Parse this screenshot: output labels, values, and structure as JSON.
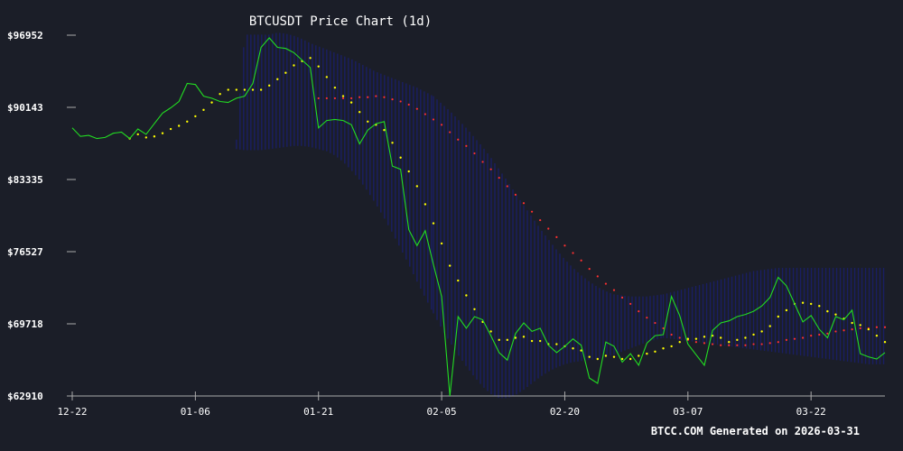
{
  "colors": {
    "background": "#1b1e28",
    "price_line": "#22dd22",
    "ma_yellow": "#ffff00",
    "ma_red": "#ff3030",
    "band_fill": "#1a1f6e",
    "axis_text": "#ffffff",
    "tick": "#aaaaaa"
  },
  "chart_data": {
    "type": "line",
    "title": "BTCUSDT Price Chart (1d)",
    "xlabel": "",
    "ylabel": "",
    "x_axis": {
      "ticks": [
        "12-22",
        "01-06",
        "01-21",
        "02-05",
        "02-20",
        "03-07",
        "03-22"
      ],
      "tick_days": [
        0,
        15,
        30,
        45,
        60,
        75,
        90
      ],
      "range_days": [
        0,
        99
      ]
    },
    "y_axis": {
      "ticks": [
        "$62910",
        "$69718",
        "$76527",
        "$83335",
        "$90143",
        "$96952"
      ],
      "tick_values": [
        62910,
        69718,
        76527,
        83335,
        90143,
        96952
      ],
      "ylim": [
        62910,
        96952
      ]
    },
    "band_segments": [
      {
        "from_day": 20,
        "to_day": 44,
        "upper": [
          87100,
          97000,
          97000,
          97000,
          97000,
          97200,
          97100,
          96900,
          96600,
          96200,
          95900,
          95600,
          95300,
          95000,
          94700,
          94300,
          93900,
          93500,
          93200,
          92900,
          92600,
          92300,
          92000,
          91600,
          91200
        ],
        "lower": [
          86200,
          86100,
          86100,
          86100,
          86200,
          86300,
          86400,
          86500,
          86500,
          86400,
          86200,
          86000,
          85600,
          85000,
          84200,
          83300,
          82200,
          81000,
          79700,
          78300,
          76800,
          75300,
          73700,
          72200,
          70700
        ]
      },
      {
        "from_day": 44,
        "to_day": 72,
        "upper": [
          91200,
          90500,
          89800,
          89000,
          88200,
          87300,
          86400,
          85400,
          84300,
          83200,
          82000,
          80900,
          79800,
          78700,
          77700,
          76700,
          75800,
          75000,
          74300,
          73700,
          73200,
          72800,
          72500,
          72400,
          72300,
          72300,
          72300,
          72400,
          72500
        ],
        "lower": [
          70700,
          69300,
          68000,
          66800,
          65700,
          64700,
          63800,
          63100,
          62700,
          62700,
          63000,
          63500,
          64100,
          64700,
          65200,
          65600,
          65900,
          66100,
          66200,
          66300,
          66400,
          66600,
          66800,
          67100,
          67400,
          67700,
          68000,
          68200,
          68400
        ]
      },
      {
        "from_day": 72,
        "to_day": 99,
        "upper": [
          72500,
          72700,
          72900,
          73100,
          73300,
          73500,
          73700,
          73900,
          74100,
          74300,
          74500,
          74700,
          74800,
          74900,
          75000,
          75000,
          75000,
          75000,
          75000,
          75000,
          75000,
          75000,
          75000,
          75000,
          75000,
          75000,
          75000,
          75000
        ],
        "lower": [
          68400,
          68300,
          68200,
          68100,
          68000,
          67900,
          67800,
          67700,
          67600,
          67500,
          67400,
          67300,
          67200,
          67100,
          67000,
          66900,
          66800,
          66700,
          66600,
          66500,
          66400,
          66300,
          66200,
          66100,
          66000,
          65900,
          65900,
          65900
        ]
      }
    ],
    "series": [
      {
        "values": [
          88200,
          87400,
          87500,
          87200,
          87300,
          87700,
          87800,
          87200,
          88100,
          87600,
          88600,
          89600,
          90100,
          90700,
          92400,
          92300,
          91200,
          91000,
          90700,
          90600,
          91000,
          91200,
          92400,
          95800,
          96700,
          95800,
          95700,
          95300,
          94600,
          93900,
          88200,
          88900,
          89000,
          88900,
          88500,
          86700,
          88000,
          88600,
          88800,
          84600,
          84300,
          78600,
          77100,
          78500,
          75300,
          72300,
          62910,
          70400,
          69300,
          70400,
          70100,
          68600,
          67000,
          66300,
          68800,
          69800,
          69000,
          69300,
          67700,
          67000,
          67600,
          68300,
          67700,
          64600,
          64100,
          68000,
          67600,
          66100,
          66900,
          65800,
          67900,
          68600,
          68700,
          72300,
          70500,
          67800,
          66800,
          65800,
          69100,
          69800,
          70000,
          70400,
          70600,
          70900,
          71400,
          72200,
          74100,
          73300,
          71600,
          69900,
          70500,
          69200,
          68400,
          70400,
          70100,
          71000,
          66900,
          66600,
          66400,
          67000
        ]
      },
      {
        "values": [
          null,
          null,
          null,
          null,
          null,
          null,
          null,
          87200,
          87600,
          87300,
          87400,
          87700,
          88100,
          88400,
          88800,
          89300,
          89900,
          90600,
          91400,
          91800,
          91800,
          91800,
          91800,
          91800,
          92200,
          92800,
          93400,
          94100,
          94500,
          94800,
          94000,
          93000,
          92000,
          91200,
          90600,
          89700,
          88800,
          88500,
          88000,
          86800,
          85400,
          84100,
          82700,
          81000,
          79200,
          77300,
          75200,
          73800,
          72400,
          71100,
          69900,
          69000,
          68200,
          68200,
          68400,
          68500,
          68100,
          68100,
          67800,
          67800,
          67600,
          67400,
          67200,
          66600,
          66400,
          66700,
          66600,
          66400,
          66400,
          66700,
          66900,
          67100,
          67400,
          67600,
          68000,
          68300,
          68300,
          68500,
          68600,
          68400,
          68000,
          68200,
          68400,
          68700,
          69000,
          69500,
          70400,
          71000,
          71600,
          71700,
          71600,
          71400,
          70900,
          70600,
          70200,
          69800,
          69600,
          69200,
          68600,
          68000
        ]
      },
      {
        "values": [
          null,
          null,
          null,
          null,
          null,
          null,
          null,
          null,
          null,
          null,
          null,
          null,
          null,
          null,
          null,
          null,
          null,
          null,
          null,
          null,
          null,
          null,
          null,
          null,
          null,
          null,
          null,
          null,
          null,
          null,
          91000,
          91000,
          91000,
          91000,
          91000,
          91100,
          91100,
          91200,
          91100,
          90900,
          90700,
          90400,
          90000,
          89500,
          89000,
          88500,
          87800,
          87100,
          86500,
          85800,
          85000,
          84300,
          83500,
          82700,
          81900,
          81100,
          80300,
          79500,
          78700,
          77900,
          77100,
          76400,
          75700,
          74900,
          74200,
          73500,
          72900,
          72200,
          71600,
          70900,
          70300,
          69800,
          69300,
          68700,
          68400,
          68200,
          68000,
          67900,
          67800,
          67700,
          67700,
          67700,
          67700,
          67800,
          67800,
          67900,
          68000,
          68200,
          68300,
          68400,
          68600,
          68700,
          68800,
          69000,
          69100,
          69200,
          69300,
          69300,
          69400,
          69400
        ]
      }
    ]
  },
  "footer": {
    "watermark": "BTCC.COM Generated on 2026-03-31"
  }
}
